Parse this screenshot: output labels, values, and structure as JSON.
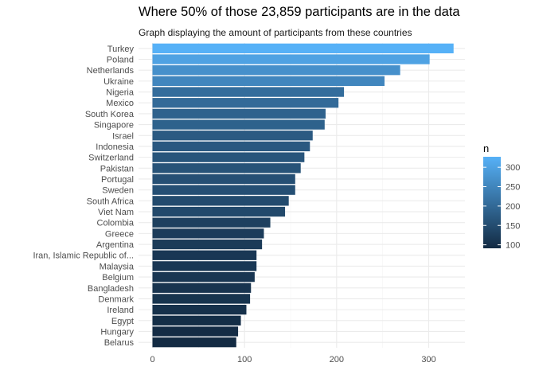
{
  "chart_data": {
    "type": "bar",
    "orientation": "horizontal",
    "title": "Where 50% of those 23,859 participants are in the data",
    "subtitle": "Graph displaying the amount of participants from these countries",
    "xlabel": "",
    "ylabel": "",
    "xlim": [
      0,
      330
    ],
    "x_ticks": [
      "0",
      "100",
      "200",
      "300"
    ],
    "grid": true,
    "legend": {
      "title": "n",
      "type": "colorbar",
      "position": "right",
      "ticks": [
        "100",
        "150",
        "200",
        "250",
        "300"
      ],
      "low_color": "#132b43",
      "high_color": "#56b1f7"
    },
    "categories": [
      "Belarus",
      "Hungary",
      "Egypt",
      "Ireland",
      "Denmark",
      "Bangladesh",
      "Belgium",
      "Malaysia",
      "Iran, Islamic Republic of...",
      "Argentina",
      "Greece",
      "Colombia",
      "Viet Nam",
      "South Africa",
      "Sweden",
      "Portugal",
      "Pakistan",
      "Switzerland",
      "Indonesia",
      "Israel",
      "Singapore",
      "South Korea",
      "Mexico",
      "Nigeria",
      "Ukraine",
      "Netherlands",
      "Poland",
      "Turkey"
    ],
    "values": [
      91,
      93,
      96,
      102,
      106,
      107,
      111,
      113,
      113,
      119,
      121,
      128,
      144,
      148,
      155,
      155,
      161,
      165,
      171,
      174,
      187,
      188,
      202,
      208,
      252,
      269,
      301,
      327
    ]
  }
}
